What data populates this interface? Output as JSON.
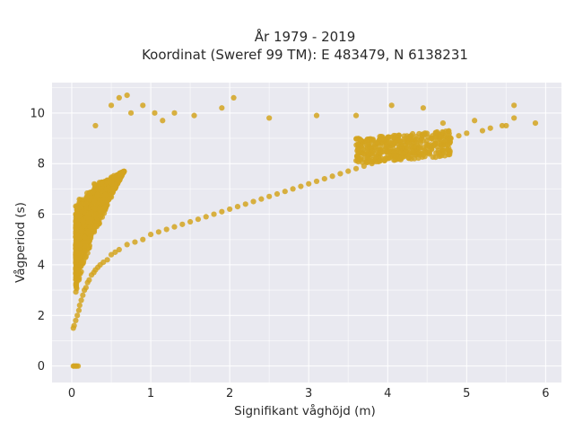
{
  "chart_data": {
    "type": "scatter",
    "title": "År 1979 - 2019",
    "subtitle": "Koordinat (Sweref 99 TM): E 483479, N 6138231",
    "xlabel": "Signifikant våghöjd (m)",
    "ylabel": "Vågperiod (s)",
    "xlim": [
      -0.25,
      6.2
    ],
    "ylim": [
      -0.65,
      11.2
    ],
    "x_ticks": [
      0,
      1,
      2,
      3,
      4,
      5,
      6
    ],
    "y_ticks": [
      0,
      2,
      4,
      6,
      8,
      10
    ],
    "grid": true,
    "legend": "none",
    "marker_color": "#d4a520",
    "background_color": "#e9e9f0",
    "series": [
      {
        "name": "",
        "x": [
          0.02,
          0.03,
          0.05,
          0.06,
          0.08,
          0.02,
          0.03,
          0.05,
          0.07,
          0.09,
          0.1,
          0.12,
          0.14,
          0.16,
          0.18,
          0.2,
          0.22,
          0.25,
          0.28,
          0.3,
          0.33,
          0.36,
          0.4,
          0.45,
          0.5,
          0.55,
          0.6,
          0.7,
          0.8,
          0.9,
          1.0,
          1.1,
          1.2,
          1.3,
          1.4,
          1.5,
          1.6,
          1.7,
          1.8,
          1.9,
          2.0,
          2.1,
          2.2,
          2.3,
          2.4,
          2.5,
          2.6,
          2.7,
          2.8,
          2.9,
          3.0,
          3.1,
          3.2,
          3.3,
          3.4,
          3.5,
          3.6,
          3.7,
          3.8,
          3.9,
          4.0,
          4.1,
          4.2,
          4.3,
          4.4,
          4.5,
          4.6,
          4.7,
          4.8,
          4.9,
          5.0,
          5.2,
          5.3,
          5.5,
          5.6,
          5.87,
          0.3,
          0.5,
          0.6,
          0.7,
          0.75,
          0.9,
          1.05,
          1.15,
          1.3,
          1.55,
          1.9,
          2.05,
          2.5,
          3.1,
          3.6,
          4.05,
          4.45,
          4.7,
          5.1,
          5.45,
          5.6
        ],
        "y": [
          0.0,
          0.0,
          0.0,
          0.0,
          0.0,
          1.5,
          1.6,
          1.8,
          2.0,
          2.2,
          2.4,
          2.6,
          2.8,
          3.0,
          3.1,
          3.3,
          3.4,
          3.6,
          3.7,
          3.8,
          3.9,
          4.0,
          4.1,
          4.2,
          4.4,
          4.5,
          4.6,
          4.8,
          4.9,
          5.0,
          5.2,
          5.3,
          5.4,
          5.5,
          5.6,
          5.7,
          5.8,
          5.9,
          6.0,
          6.1,
          6.2,
          6.3,
          6.4,
          6.5,
          6.6,
          6.7,
          6.8,
          6.9,
          7.0,
          7.1,
          7.2,
          7.3,
          7.4,
          7.5,
          7.6,
          7.7,
          7.8,
          7.9,
          8.0,
          8.1,
          8.2,
          8.3,
          8.4,
          8.5,
          8.6,
          8.7,
          8.8,
          8.9,
          9.0,
          9.1,
          9.2,
          9.3,
          9.4,
          9.5,
          9.8,
          9.6,
          9.5,
          10.3,
          10.6,
          10.7,
          10.0,
          10.3,
          10.0,
          9.7,
          10.0,
          9.9,
          10.2,
          10.6,
          9.8,
          9.9,
          9.9,
          10.3,
          10.2,
          9.6,
          9.7,
          9.5,
          10.3
        ]
      }
    ]
  }
}
